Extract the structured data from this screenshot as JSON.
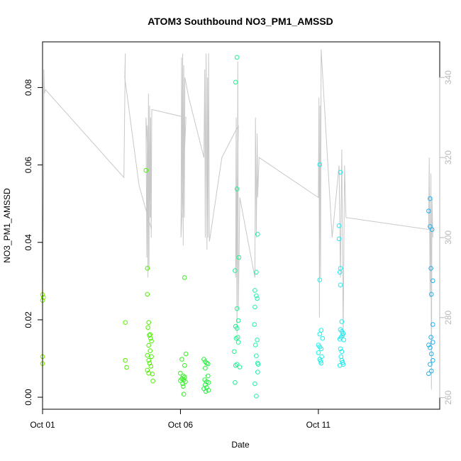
{
  "chart_data": {
    "type": "scatter",
    "title": "ATOM3 Southbound NO3_PM1_AMSSD",
    "xlabel": "Date",
    "ylabel": "NO3_PM1_AMSSD",
    "x_ticks": [
      "Oct 01",
      "Oct 06",
      "Oct 11"
    ],
    "y_ticks": [
      "0.00",
      "0.02",
      "0.04",
      "0.06",
      "0.08"
    ],
    "y2_ticks": [
      "260",
      "280",
      "300",
      "320",
      "340"
    ],
    "xlim": [
      0.0,
      14.4
    ],
    "ylim": [
      -0.0031,
      0.0918
    ],
    "y2lim": [
      257.1,
      348.9
    ],
    "grid": false,
    "colors": {
      "axis": "#000000",
      "secondary_axis": "#b8b8b8",
      "line": "#c8c8c8"
    },
    "series": [
      {
        "points": [
          [
            0.0,
            0.0265,
            "#7ef000"
          ],
          [
            0.0,
            0.025,
            "#7ef000"
          ],
          [
            0.03,
            0.0258,
            "#7ef000"
          ],
          [
            0.0,
            0.0105,
            "#7ef000"
          ],
          [
            0.0,
            0.0087,
            "#7ef000"
          ],
          [
            3.0,
            0.0193,
            "#55f000"
          ],
          [
            3.0,
            0.0095,
            "#55f000"
          ],
          [
            3.05,
            0.0077,
            "#55f000"
          ],
          [
            3.75,
            0.0586,
            "#4cf000"
          ],
          [
            3.8,
            0.0333,
            "#4cf000"
          ],
          [
            3.8,
            0.0266,
            "#4cf000"
          ],
          [
            3.85,
            0.0193,
            "#4cf000"
          ],
          [
            3.82,
            0.018,
            "#4cf000"
          ],
          [
            3.9,
            0.0162,
            "#4cf000"
          ],
          [
            3.87,
            0.016,
            "#4cf000"
          ],
          [
            3.92,
            0.0152,
            "#4cf000"
          ],
          [
            3.95,
            0.0145,
            "#4cf000"
          ],
          [
            3.85,
            0.0134,
            "#4cf000"
          ],
          [
            3.9,
            0.012,
            "#4cf000"
          ],
          [
            3.8,
            0.0108,
            "#4cf000"
          ],
          [
            3.95,
            0.0105,
            "#4cf000"
          ],
          [
            3.85,
            0.0095,
            "#4cf000"
          ],
          [
            3.88,
            0.0088,
            "#4cf000"
          ],
          [
            3.93,
            0.008,
            "#4cf000"
          ],
          [
            3.8,
            0.007,
            "#4cf000"
          ],
          [
            3.85,
            0.0062,
            "#4cf000"
          ],
          [
            3.98,
            0.006,
            "#4cf000"
          ],
          [
            4.0,
            0.0042,
            "#4cf000"
          ],
          [
            5.15,
            0.0309,
            "#30f020"
          ],
          [
            5.2,
            0.0112,
            "#30f020"
          ],
          [
            5.05,
            0.0098,
            "#30f020"
          ],
          [
            5.15,
            0.0082,
            "#30f020"
          ],
          [
            5.0,
            0.0062,
            "#30f020"
          ],
          [
            5.1,
            0.0055,
            "#30f020"
          ],
          [
            5.15,
            0.0052,
            "#30f020"
          ],
          [
            5.05,
            0.0048,
            "#30f020"
          ],
          [
            5.12,
            0.0045,
            "#30f020"
          ],
          [
            5.0,
            0.0043,
            "#30f020"
          ],
          [
            5.18,
            0.004,
            "#30f020"
          ],
          [
            5.08,
            0.0035,
            "#30f020"
          ],
          [
            5.1,
            0.0028,
            "#30f020"
          ],
          [
            5.12,
            0.0008,
            "#30f020"
          ],
          [
            5.85,
            0.0098,
            "#25f040"
          ],
          [
            5.9,
            0.0092,
            "#25f040"
          ],
          [
            5.95,
            0.0088,
            "#25f040"
          ],
          [
            6.0,
            0.0086,
            "#25f040"
          ],
          [
            5.9,
            0.0075,
            "#25f040"
          ],
          [
            6.0,
            0.0055,
            "#25f040"
          ],
          [
            5.88,
            0.0045,
            "#25f040"
          ],
          [
            5.95,
            0.004,
            "#25f040"
          ],
          [
            6.02,
            0.0038,
            "#25f040"
          ],
          [
            5.9,
            0.0032,
            "#25f040"
          ],
          [
            5.95,
            0.0025,
            "#25f040"
          ],
          [
            5.85,
            0.0022,
            "#25f040"
          ],
          [
            6.02,
            0.0018,
            "#25f040"
          ],
          [
            5.92,
            0.0015,
            "#25f040"
          ],
          [
            7.05,
            0.0878,
            "#20f090"
          ],
          [
            7.0,
            0.0814,
            "#20f090"
          ],
          [
            7.05,
            0.0538,
            "#20f090"
          ],
          [
            7.12,
            0.0361,
            "#20f090"
          ],
          [
            6.98,
            0.0327,
            "#20f090"
          ],
          [
            7.05,
            0.0229,
            "#20f090"
          ],
          [
            7.1,
            0.0198,
            "#20f090"
          ],
          [
            7.0,
            0.0183,
            "#20f090"
          ],
          [
            7.05,
            0.0178,
            "#20f090"
          ],
          [
            7.08,
            0.0155,
            "#20f090"
          ],
          [
            7.02,
            0.0152,
            "#20f090"
          ],
          [
            7.1,
            0.0142,
            "#20f090"
          ],
          [
            6.95,
            0.0118,
            "#20f090"
          ],
          [
            7.05,
            0.0085,
            "#20f090"
          ],
          [
            7.0,
            0.0082,
            "#20f090"
          ],
          [
            7.15,
            0.0078,
            "#20f090"
          ],
          [
            6.98,
            0.0038,
            "#20f090"
          ],
          [
            7.8,
            0.0421,
            "#20f0b0"
          ],
          [
            7.75,
            0.0323,
            "#20f0b0"
          ],
          [
            7.7,
            0.0276,
            "#20f0b0"
          ],
          [
            7.75,
            0.0262,
            "#20f0b0"
          ],
          [
            7.78,
            0.0255,
            "#20f0b0"
          ],
          [
            7.7,
            0.0233,
            "#20f0b0"
          ],
          [
            7.68,
            0.0188,
            "#20f0b0"
          ],
          [
            7.78,
            0.0148,
            "#20f0b0"
          ],
          [
            7.72,
            0.0135,
            "#20f0b0"
          ],
          [
            7.75,
            0.0107,
            "#20f0b0"
          ],
          [
            7.8,
            0.0088,
            "#20f0b0"
          ],
          [
            7.82,
            0.0085,
            "#20f0b0"
          ],
          [
            7.8,
            0.0065,
            "#20f0b0"
          ],
          [
            7.7,
            0.0035,
            "#20f0b0"
          ],
          [
            7.75,
            0.0003,
            "#20f0b0"
          ],
          [
            10.05,
            0.0601,
            "#20f0e8"
          ],
          [
            10.05,
            0.0303,
            "#20f0e8"
          ],
          [
            10.1,
            0.0173,
            "#20f0e8"
          ],
          [
            10.05,
            0.0163,
            "#20f0e8"
          ],
          [
            10.15,
            0.0152,
            "#20f0e8"
          ],
          [
            10.0,
            0.0135,
            "#20f0e8"
          ],
          [
            10.05,
            0.013,
            "#20f0e8"
          ],
          [
            10.1,
            0.0125,
            "#20f0e8"
          ],
          [
            10.0,
            0.0115,
            "#20f0e8"
          ],
          [
            10.12,
            0.0105,
            "#20f0e8"
          ],
          [
            10.05,
            0.0098,
            "#20f0e8"
          ],
          [
            10.08,
            0.0093,
            "#20f0e8"
          ],
          [
            10.1,
            0.0088,
            "#20f0e8"
          ],
          [
            10.8,
            0.0581,
            "#20e8f0"
          ],
          [
            10.75,
            0.0443,
            "#20e8f0"
          ],
          [
            10.75,
            0.0409,
            "#20e8f0"
          ],
          [
            10.8,
            0.0333,
            "#20e8f0"
          ],
          [
            10.78,
            0.0323,
            "#20e8f0"
          ],
          [
            10.8,
            0.029,
            "#20e8f0"
          ],
          [
            10.85,
            0.0195,
            "#20e8f0"
          ],
          [
            10.8,
            0.0175,
            "#20e8f0"
          ],
          [
            10.85,
            0.017,
            "#20e8f0"
          ],
          [
            10.9,
            0.0165,
            "#20e8f0"
          ],
          [
            10.88,
            0.016,
            "#20e8f0"
          ],
          [
            10.82,
            0.0155,
            "#20e8f0"
          ],
          [
            10.78,
            0.015,
            "#20e8f0"
          ],
          [
            10.92,
            0.0148,
            "#20e8f0"
          ],
          [
            10.8,
            0.0125,
            "#20e8f0"
          ],
          [
            10.85,
            0.0118,
            "#20e8f0"
          ],
          [
            10.82,
            0.0105,
            "#20e8f0"
          ],
          [
            10.85,
            0.0095,
            "#20e8f0"
          ],
          [
            10.88,
            0.009,
            "#20e8f0"
          ],
          [
            10.78,
            0.0082,
            "#20e8f0"
          ],
          [
            10.9,
            0.0085,
            "#20e8f0"
          ],
          [
            14.05,
            0.0513,
            "#20b0f0"
          ],
          [
            14.0,
            0.0481,
            "#20b0f0"
          ],
          [
            14.05,
            0.0441,
            "#20b0f0"
          ],
          [
            14.12,
            0.0433,
            "#20b0f0"
          ],
          [
            14.08,
            0.0333,
            "#20b0f0"
          ],
          [
            14.15,
            0.0301,
            "#20b0f0"
          ],
          [
            14.1,
            0.0266,
            "#20b0f0"
          ],
          [
            14.15,
            0.0188,
            "#20b0f0"
          ],
          [
            14.08,
            0.0155,
            "#20b0f0"
          ],
          [
            14.15,
            0.0142,
            "#20b0f0"
          ],
          [
            14.0,
            0.0135,
            "#20b0f0"
          ],
          [
            14.05,
            0.0128,
            "#20b0f0"
          ],
          [
            14.1,
            0.0112,
            "#20b0f0"
          ],
          [
            14.15,
            0.0095,
            "#20b0f0"
          ],
          [
            14.05,
            0.0085,
            "#20b0f0"
          ],
          [
            14.1,
            0.0068,
            "#20b0f0"
          ],
          [
            14.0,
            0.0061,
            "#20b0f0"
          ]
        ]
      },
      {
        "axis": "right",
        "path": [
          [
            0.0,
            287
          ],
          [
            0.05,
            320
          ],
          [
            0.05,
            342
          ],
          [
            0.07,
            336
          ],
          [
            0.1,
            337
          ],
          [
            2.95,
            315
          ],
          [
            3.0,
            346
          ],
          [
            2.98,
            340
          ],
          [
            3.5,
            313
          ],
          [
            3.95,
            302
          ],
          [
            3.75,
            330
          ],
          [
            3.78,
            295
          ],
          [
            3.8,
            328
          ],
          [
            3.82,
            290
          ],
          [
            3.84,
            336
          ],
          [
            3.86,
            292
          ],
          [
            3.88,
            333
          ],
          [
            3.9,
            305
          ],
          [
            3.92,
            330
          ],
          [
            3.94,
            300
          ],
          [
            3.96,
            332
          ],
          [
            5.2,
            330
          ],
          [
            5.02,
            300
          ],
          [
            5.04,
            345
          ],
          [
            5.06,
            305
          ],
          [
            5.08,
            346
          ],
          [
            5.1,
            298
          ],
          [
            5.12,
            343
          ],
          [
            5.14,
            305
          ],
          [
            5.16,
            340
          ],
          [
            5.3,
            335
          ],
          [
            5.85,
            320
          ],
          [
            5.88,
            342
          ],
          [
            5.9,
            300
          ],
          [
            5.93,
            346
          ],
          [
            5.96,
            297
          ],
          [
            5.98,
            340
          ],
          [
            6.0,
            300
          ],
          [
            6.02,
            346
          ],
          [
            6.05,
            299
          ],
          [
            6.5,
            320
          ],
          [
            7.1,
            328
          ],
          [
            7.0,
            290
          ],
          [
            7.02,
            330
          ],
          [
            7.05,
            276
          ],
          [
            7.08,
            344
          ],
          [
            7.1,
            282
          ],
          [
            7.15,
            310
          ],
          [
            7.7,
            290
          ],
          [
            7.72,
            330
          ],
          [
            7.75,
            300
          ],
          [
            7.78,
            326
          ],
          [
            7.8,
            310
          ],
          [
            7.85,
            320
          ],
          [
            10.0,
            310
          ],
          [
            10.02,
            335
          ],
          [
            10.04,
            280
          ],
          [
            10.06,
            333
          ],
          [
            10.08,
            290
          ],
          [
            10.1,
            347
          ],
          [
            10.5,
            300
          ],
          [
            10.75,
            318
          ],
          [
            10.8,
            290
          ],
          [
            10.85,
            322
          ],
          [
            10.9,
            275
          ],
          [
            10.95,
            318
          ],
          [
            11.0,
            305
          ],
          [
            14.0,
            302
          ],
          [
            14.02,
            320
          ],
          [
            14.05,
            285
          ],
          [
            14.08,
            316
          ],
          [
            14.1,
            262
          ],
          [
            14.12,
            310
          ],
          [
            14.15,
            300
          ]
        ]
      }
    ]
  }
}
